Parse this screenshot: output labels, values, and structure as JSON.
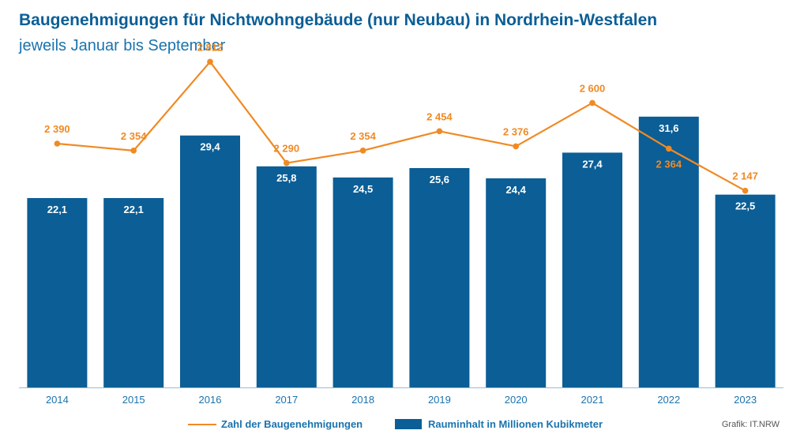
{
  "title": "Baugenehmigungen für Nichtwohngebäude (nur Neubau) in Nordrhein-Westfalen",
  "subtitle": "jeweils Januar bis September",
  "credit": "Grafik: IT.NRW",
  "colors": {
    "bar": "#0b5e96",
    "line": "#f08a24",
    "axis": "#1a73ad"
  },
  "chart_data": {
    "type": "bar+line",
    "categories": [
      "2014",
      "2015",
      "2016",
      "2017",
      "2018",
      "2019",
      "2020",
      "2021",
      "2022",
      "2023"
    ],
    "series": [
      {
        "name": "Rauminhalt in Millionen Kubikmeter",
        "type": "bar",
        "values": [
          22.1,
          22.1,
          29.4,
          25.8,
          24.5,
          25.6,
          24.4,
          27.4,
          31.6,
          22.5
        ],
        "labels": [
          "22,1",
          "22,1",
          "29,4",
          "25,8",
          "24,5",
          "25,6",
          "24,4",
          "27,4",
          "31,6",
          "22,5"
        ]
      },
      {
        "name": "Zahl der Baugenehmigungen",
        "type": "line",
        "values": [
          2390,
          2354,
          2812,
          2290,
          2354,
          2454,
          2376,
          2600,
          2364,
          2147
        ],
        "labels": [
          "2 390",
          "2 354",
          "2 812",
          "2 290",
          "2 354",
          "2 454",
          "2 376",
          "2 600",
          "2 364",
          "2 147"
        ]
      }
    ],
    "legend_position": "bottom",
    "grid": false
  }
}
